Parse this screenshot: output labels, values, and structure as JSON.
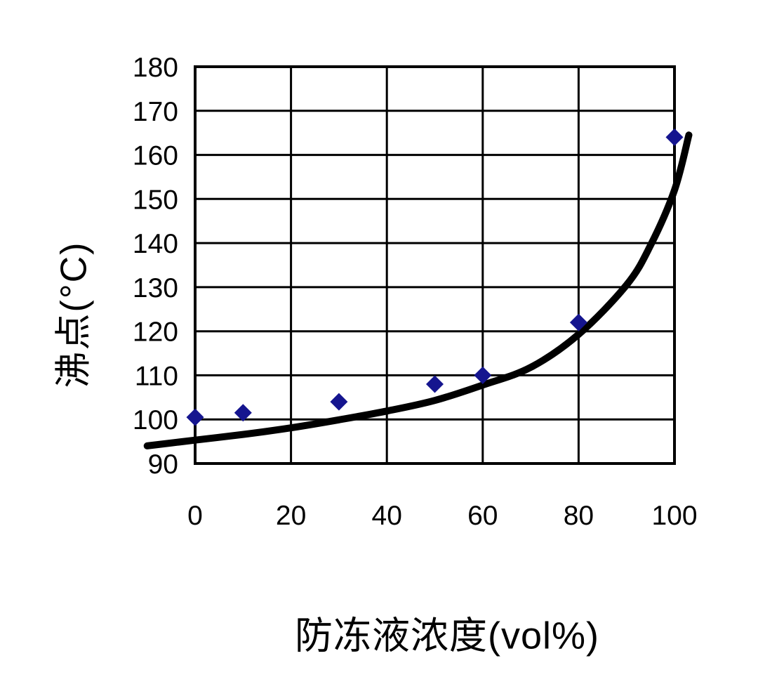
{
  "chart_data": {
    "type": "scatter",
    "xlabel": "防冻液浓度(vol%)",
    "ylabel": "沸点(°C)",
    "xlim": [
      0,
      100
    ],
    "ylim": [
      90,
      180
    ],
    "xticks": [
      0,
      20,
      40,
      60,
      80,
      100
    ],
    "yticks": [
      90,
      100,
      110,
      120,
      130,
      140,
      150,
      160,
      170,
      180
    ],
    "grid": "on",
    "legend": "none",
    "series": [
      {
        "name": "boiling-point-measurements",
        "marker": "diamond",
        "color": "#15158f",
        "points": [
          [
            0,
            100.5
          ],
          [
            10,
            101.5
          ],
          [
            30,
            104
          ],
          [
            50,
            108
          ],
          [
            60,
            110
          ],
          [
            80,
            122
          ],
          [
            100,
            164
          ]
        ]
      }
    ],
    "trend_line": {
      "name": "fitted-curve",
      "color": "#000000",
      "points": [
        [
          -10,
          94
        ],
        [
          0,
          95.3
        ],
        [
          10,
          96.6
        ],
        [
          20,
          98.1
        ],
        [
          30,
          99.9
        ],
        [
          40,
          101.9
        ],
        [
          50,
          104.3
        ],
        [
          60,
          107.8
        ],
        [
          70,
          111.8
        ],
        [
          80,
          119.3
        ],
        [
          90,
          130.5
        ],
        [
          95,
          139.5
        ],
        [
          100,
          152
        ],
        [
          103,
          164.5
        ]
      ]
    },
    "style": {
      "grid_color": "#000000",
      "frame_color": "#000000",
      "background": "#ffffff",
      "text_color": "#000000"
    }
  }
}
